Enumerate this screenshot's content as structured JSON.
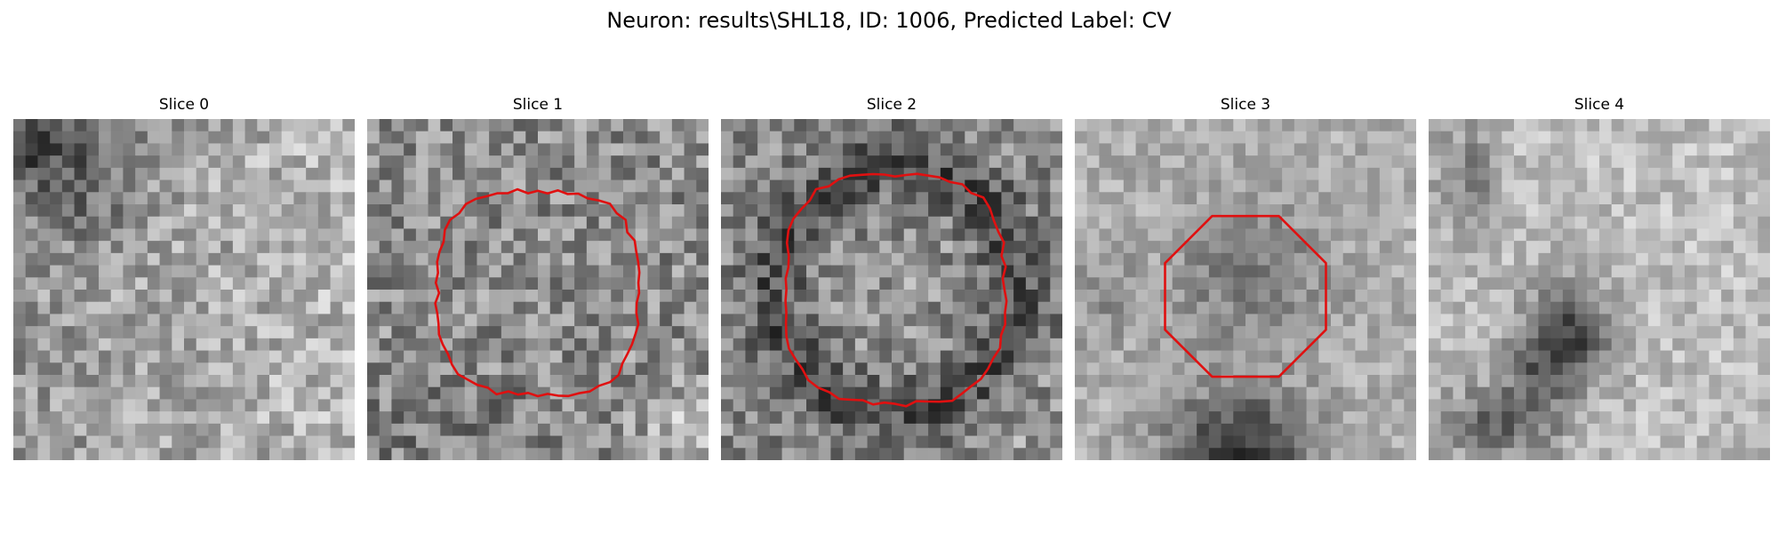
{
  "figure": {
    "title": "Neuron: results\\SHL18, ID: 1006, Predicted Label: CV"
  },
  "contour_color": "#e01010",
  "image_grid": {
    "rows": 28,
    "cols": 28
  },
  "slices": [
    {
      "title": "Slice 0",
      "has_contour": false,
      "pattern": "dark-top-left"
    },
    {
      "title": "Slice 1",
      "has_contour": true,
      "pattern": "uniform-noise"
    },
    {
      "title": "Slice 2",
      "has_contour": true,
      "pattern": "dark-ring"
    },
    {
      "title": "Slice 3",
      "has_contour": true,
      "pattern": "bright-surround-dark-bottom"
    },
    {
      "title": "Slice 4",
      "has_contour": false,
      "pattern": "dark-blob-diagonal"
    }
  ]
}
